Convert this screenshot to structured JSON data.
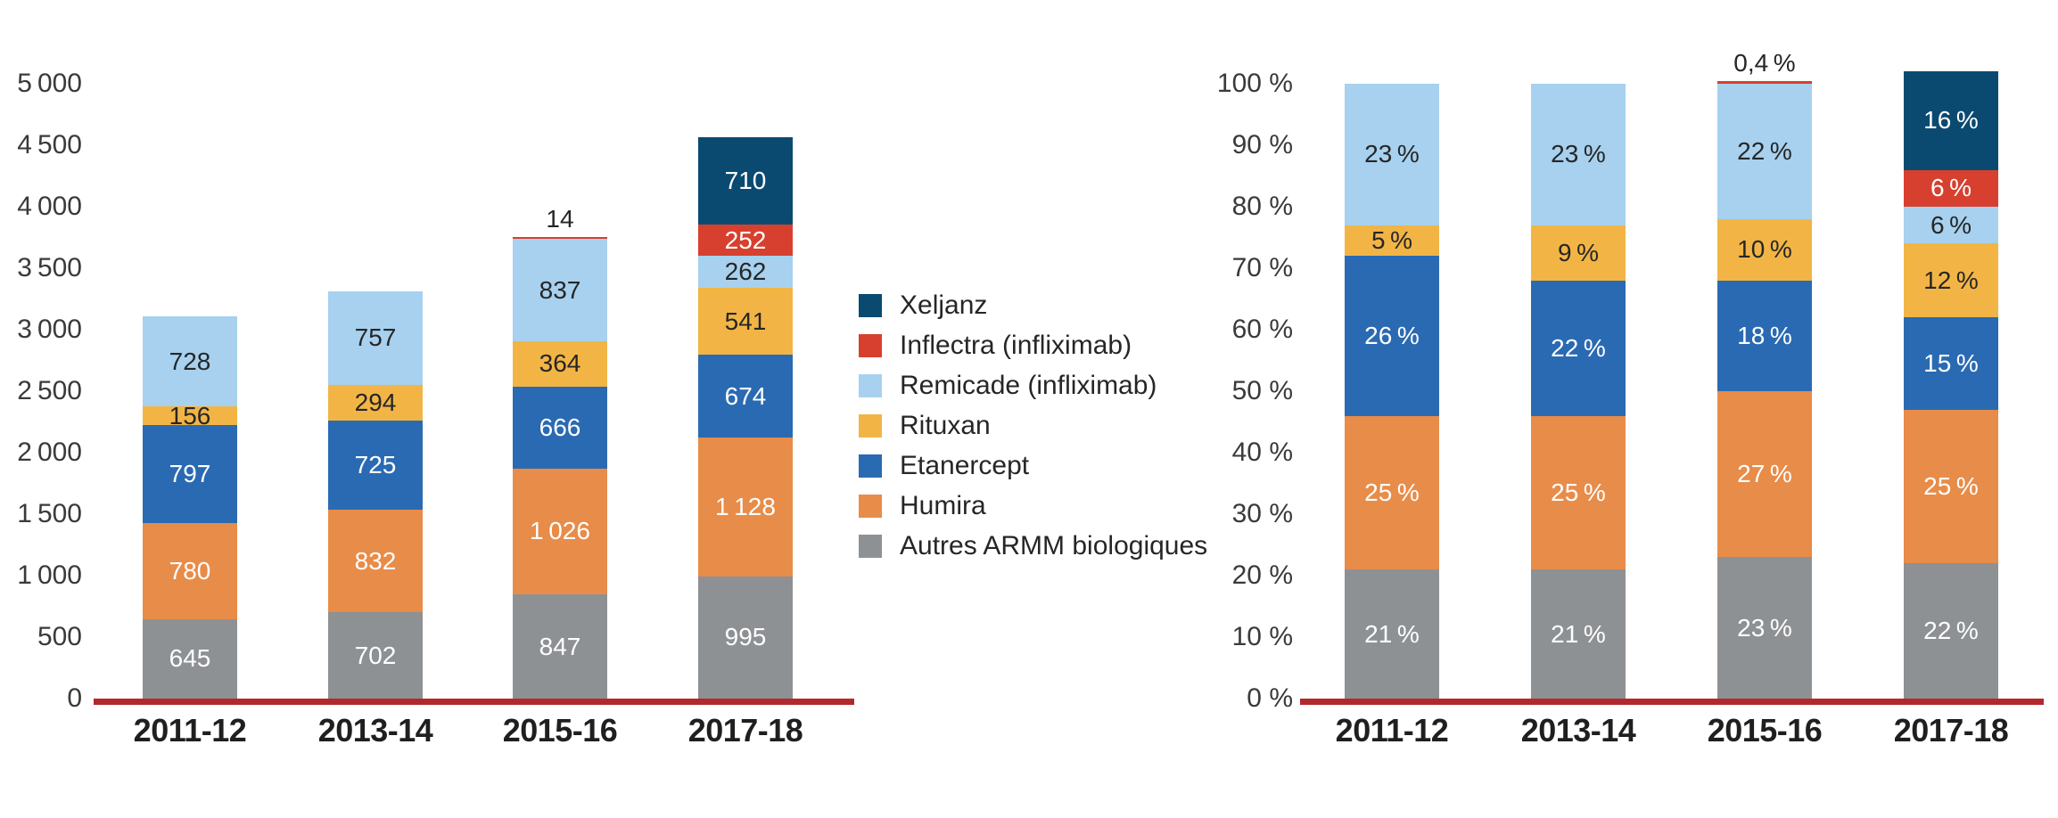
{
  "colors": {
    "background": "#FFFFFF",
    "baseline": "#B3282D",
    "axis_text": "#3A3A3A",
    "label_text_dark": "#262626",
    "label_text_light": "#FFFFFF",
    "xeljanz": "#0A4A71",
    "inflectra": "#D7402E",
    "remicade": "#A7D1EF",
    "rituxan": "#F2B545",
    "etanercept": "#2A6AB2",
    "humira": "#E88C49",
    "autres_armm": "#8E9194"
  },
  "legend": {
    "items": [
      {
        "label": "Xeljanz",
        "color": "#0A4A71"
      },
      {
        "label": "Inflectra (infliximab)",
        "color": "#D7402E"
      },
      {
        "label": "Remicade (infliximab)",
        "color": "#A7D1EF"
      },
      {
        "label": "Rituxan",
        "color": "#F2B545"
      },
      {
        "label": "Etanercept",
        "color": "#2A6AB2"
      },
      {
        "label": "Humira",
        "color": "#E88C49"
      },
      {
        "label": "Autres ARMM biologiques",
        "color": "#8E9194"
      }
    ]
  },
  "chart_data": [
    {
      "id": "absolute-values",
      "type": "bar",
      "stacked": true,
      "title": "",
      "xlabel": "",
      "ylabel": "",
      "categories": [
        "2011-12",
        "2013-14",
        "2015-16",
        "2017-18"
      ],
      "y_axis": {
        "min": 0,
        "max": 5000,
        "tick_step": 500,
        "grid": false,
        "tick_labels": [
          "0",
          "500",
          "1 000",
          "1 500",
          "2 000",
          "2 500",
          "3 000",
          "3 500",
          "4 000",
          "4 500",
          "5 000"
        ]
      },
      "series": [
        {
          "name": "Autres ARMM biologiques",
          "color": "#8E9194",
          "label_color": "#FFFFFF",
          "values": [
            645,
            702,
            847,
            995
          ],
          "labels": [
            "645",
            "702",
            "847",
            "995"
          ],
          "label_outside": [
            false,
            false,
            false,
            false
          ]
        },
        {
          "name": "Humira",
          "color": "#E88C49",
          "label_color": "#FFFFFF",
          "values": [
            780,
            832,
            1026,
            1128
          ],
          "labels": [
            "780",
            "832",
            "1 026",
            "1 128"
          ],
          "label_outside": [
            false,
            false,
            false,
            false
          ]
        },
        {
          "name": "Etanercept",
          "color": "#2A6AB2",
          "label_color": "#FFFFFF",
          "values": [
            797,
            725,
            666,
            674
          ],
          "labels": [
            "797",
            "725",
            "666",
            "674"
          ],
          "label_outside": [
            false,
            false,
            false,
            false
          ]
        },
        {
          "name": "Rituxan",
          "color": "#F2B545",
          "label_color": "#262626",
          "values": [
            156,
            294,
            364,
            541
          ],
          "labels": [
            "156",
            "294",
            "364",
            "541"
          ],
          "label_outside": [
            false,
            false,
            false,
            false
          ]
        },
        {
          "name": "Remicade (infliximab)",
          "color": "#A7D1EF",
          "label_color": "#262626",
          "values": [
            728,
            757,
            837,
            262
          ],
          "labels": [
            "728",
            "757",
            "837",
            "262"
          ],
          "label_outside": [
            false,
            false,
            false,
            false
          ]
        },
        {
          "name": "Inflectra (infliximab)",
          "color": "#D7402E",
          "label_color": "#FFFFFF",
          "values": [
            0,
            0,
            14,
            252
          ],
          "labels": [
            null,
            null,
            "14",
            "252"
          ],
          "label_outside": [
            false,
            false,
            true,
            false
          ]
        },
        {
          "name": "Xeljanz",
          "color": "#0A4A71",
          "label_color": "#FFFFFF",
          "values": [
            0,
            0,
            0,
            710
          ],
          "labels": [
            null,
            null,
            null,
            "710"
          ],
          "label_outside": [
            false,
            false,
            false,
            false
          ]
        }
      ]
    },
    {
      "id": "percent-shares",
      "type": "bar",
      "stacked": true,
      "title": "",
      "xlabel": "",
      "ylabel": "",
      "categories": [
        "2011-12",
        "2013-14",
        "2015-16",
        "2017-18"
      ],
      "y_axis": {
        "min": 0,
        "max": 100,
        "tick_step": 10,
        "grid": false,
        "tick_labels": [
          "0 %",
          "10 %",
          "20 %",
          "30 %",
          "40 %",
          "50 %",
          "60 %",
          "70 %",
          "80 %",
          "90 %",
          "100 %"
        ]
      },
      "series": [
        {
          "name": "Autres ARMM biologiques",
          "color": "#8E9194",
          "label_color": "#FFFFFF",
          "values": [
            21,
            21,
            23,
            22
          ],
          "labels": [
            "21 %",
            "21 %",
            "23 %",
            "22 %"
          ],
          "label_outside": [
            false,
            false,
            false,
            false
          ]
        },
        {
          "name": "Humira",
          "color": "#E88C49",
          "label_color": "#FFFFFF",
          "values": [
            25,
            25,
            27,
            25
          ],
          "labels": [
            "25 %",
            "25 %",
            "27 %",
            "25 %"
          ],
          "label_outside": [
            false,
            false,
            false,
            false
          ]
        },
        {
          "name": "Etanercept",
          "color": "#2A6AB2",
          "label_color": "#FFFFFF",
          "values": [
            26,
            22,
            18,
            15
          ],
          "labels": [
            "26 %",
            "22 %",
            "18 %",
            "15 %"
          ],
          "label_outside": [
            false,
            false,
            false,
            false
          ]
        },
        {
          "name": "Rituxan",
          "color": "#F2B545",
          "label_color": "#262626",
          "values": [
            5,
            9,
            10,
            12
          ],
          "labels": [
            "5 %",
            "9 %",
            "10 %",
            "12 %"
          ],
          "label_outside": [
            false,
            false,
            false,
            false
          ]
        },
        {
          "name": "Remicade (infliximab)",
          "color": "#A7D1EF",
          "label_color": "#262626",
          "values": [
            23,
            23,
            22,
            6
          ],
          "labels": [
            "23 %",
            "23 %",
            "22 %",
            "6 %"
          ],
          "label_outside": [
            false,
            false,
            false,
            false
          ]
        },
        {
          "name": "Inflectra (infliximab)",
          "color": "#D7402E",
          "label_color": "#FFFFFF",
          "values": [
            0,
            0,
            0.4,
            6
          ],
          "labels": [
            null,
            null,
            "0,4 %",
            "6 %"
          ],
          "label_outside": [
            false,
            false,
            true,
            false
          ]
        },
        {
          "name": "Xeljanz",
          "color": "#0A4A71",
          "label_color": "#FFFFFF",
          "values": [
            0,
            0,
            0,
            16
          ],
          "labels": [
            null,
            null,
            null,
            "16 %"
          ],
          "label_outside": [
            false,
            false,
            false,
            false
          ]
        }
      ]
    }
  ]
}
